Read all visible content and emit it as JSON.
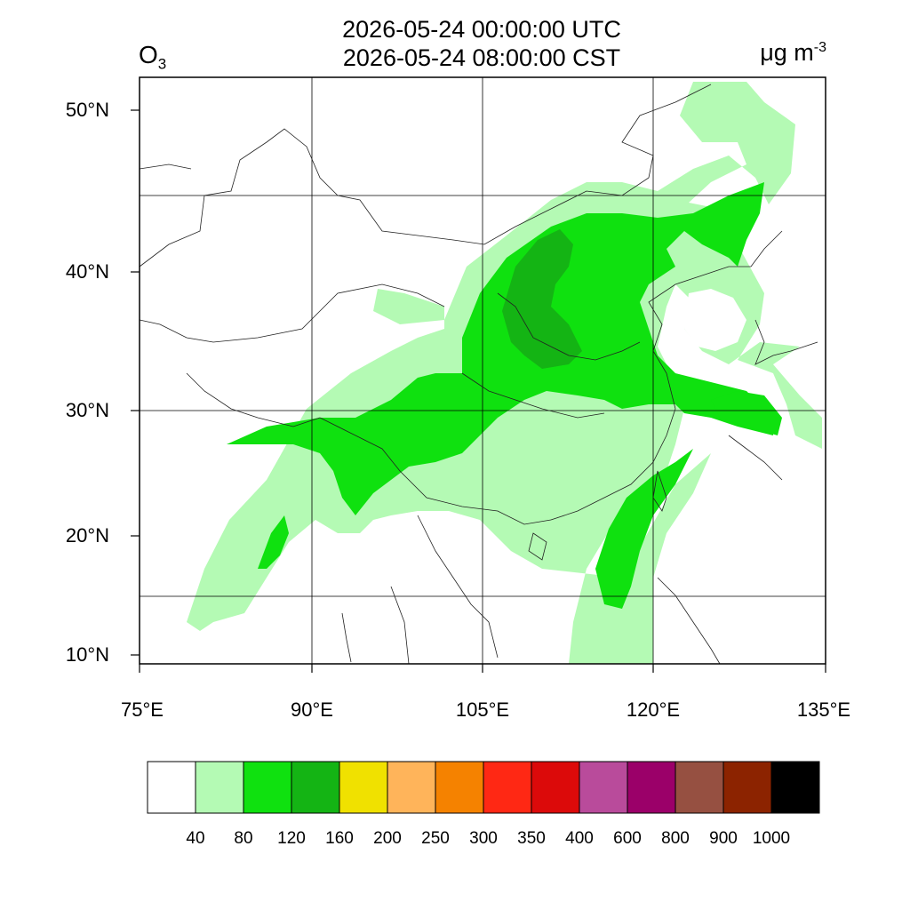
{
  "header": {
    "utc_time": "2026-05-24 00:00:00 UTC",
    "local_time": "2026-05-24 08:00:00 CST",
    "variable": "O",
    "variable_sub": "3",
    "unit": "μg m",
    "unit_sup": "-3"
  },
  "map": {
    "lon_range": [
      75,
      135
    ],
    "lat_range": [
      9,
      52
    ],
    "lat_ticks": [
      {
        "value": 10,
        "label": "10°N"
      },
      {
        "value": 20,
        "label": "20°N"
      },
      {
        "value": 30,
        "label": "30°N"
      },
      {
        "value": 40,
        "label": "40°N"
      },
      {
        "value": 50,
        "label": "50°N"
      }
    ],
    "lon_ticks": [
      {
        "value": 75,
        "label": "75°E"
      },
      {
        "value": 90,
        "label": "90°E"
      },
      {
        "value": 105,
        "label": "105°E"
      },
      {
        "value": 120,
        "label": "120°E"
      },
      {
        "value": 135,
        "label": "135°E"
      }
    ]
  },
  "colorbar": {
    "colors": [
      "#ffffff",
      "#b4fab4",
      "#0fe10f",
      "#14b414",
      "#f0e100",
      "#ffb45a",
      "#f58200",
      "#ff2814",
      "#dc0a0a",
      "#b94b9b",
      "#9b0069",
      "#965041",
      "#8c2300",
      "#000000"
    ],
    "labels": [
      "40",
      "80",
      "120",
      "160",
      "200",
      "250",
      "300",
      "350",
      "400",
      "600",
      "800",
      "900",
      "1000"
    ]
  }
}
